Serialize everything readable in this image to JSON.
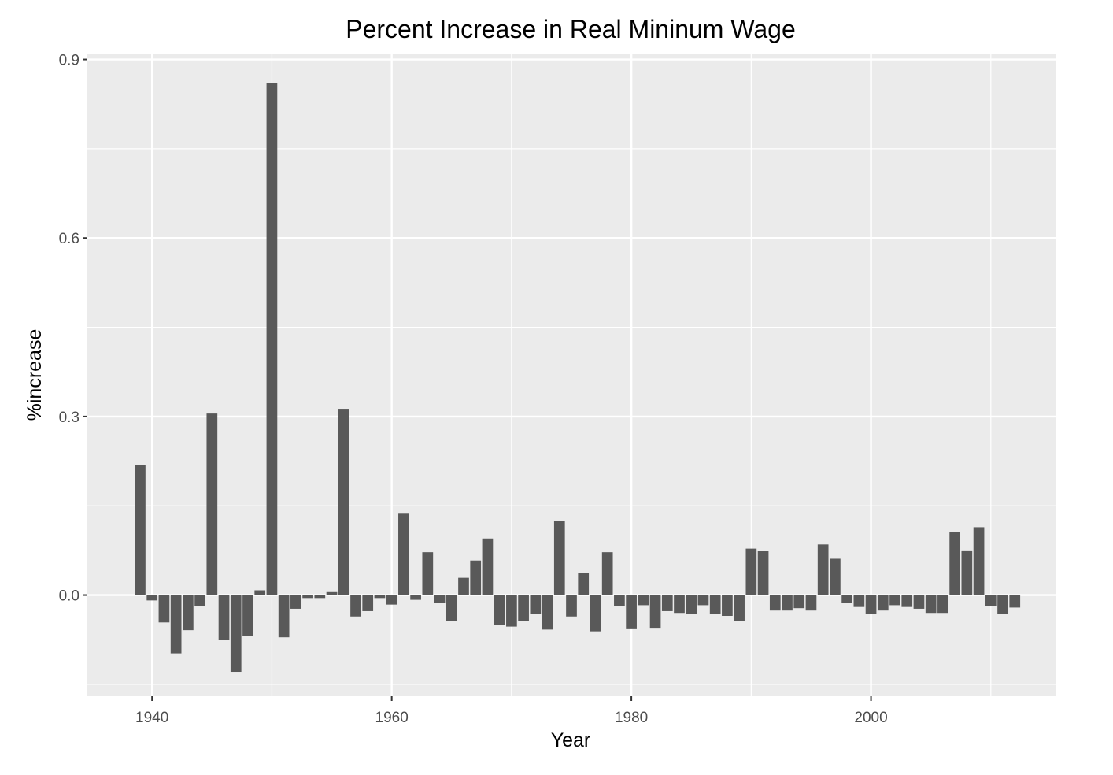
{
  "chart_data": {
    "type": "bar",
    "title": "Percent Increase in Real Mininum Wage",
    "xlabel": "Year",
    "ylabel": "%increase",
    "xlim": [
      1934.6,
      2015.4
    ],
    "ylim": [
      -0.17,
      0.91
    ],
    "x_ticks": [
      {
        "value": 1940,
        "label": "1940"
      },
      {
        "value": 1960,
        "label": "1960"
      },
      {
        "value": 1980,
        "label": "1980"
      },
      {
        "value": 2000,
        "label": "2000"
      }
    ],
    "y_ticks": [
      {
        "value": 0.0,
        "label": "0.0"
      },
      {
        "value": 0.3,
        "label": "0.3"
      },
      {
        "value": 0.6,
        "label": "0.6"
      },
      {
        "value": 0.9,
        "label": "0.9"
      }
    ],
    "grid": true,
    "bar_color": "#595959",
    "panel_color": "#ebebeb",
    "x": [
      1939,
      1940,
      1941,
      1942,
      1943,
      1944,
      1945,
      1946,
      1947,
      1948,
      1949,
      1950,
      1951,
      1952,
      1953,
      1954,
      1955,
      1956,
      1957,
      1958,
      1959,
      1960,
      1961,
      1962,
      1963,
      1964,
      1965,
      1966,
      1967,
      1968,
      1969,
      1970,
      1971,
      1972,
      1973,
      1974,
      1975,
      1976,
      1977,
      1978,
      1979,
      1980,
      1981,
      1982,
      1983,
      1984,
      1985,
      1986,
      1987,
      1988,
      1989,
      1990,
      1991,
      1992,
      1993,
      1994,
      1995,
      1996,
      1997,
      1998,
      1999,
      2000,
      2001,
      2002,
      2003,
      2004,
      2005,
      2006,
      2007,
      2008,
      2009,
      2010,
      2011,
      2012
    ],
    "values": [
      0.218,
      -0.009,
      -0.046,
      -0.098,
      -0.059,
      -0.019,
      0.305,
      -0.076,
      -0.129,
      -0.069,
      0.008,
      0.861,
      -0.071,
      -0.023,
      -0.005,
      -0.005,
      0.005,
      0.313,
      -0.036,
      -0.027,
      -0.005,
      -0.016,
      0.138,
      -0.008,
      0.072,
      -0.013,
      -0.043,
      0.029,
      0.058,
      0.095,
      -0.05,
      -0.053,
      -0.043,
      -0.032,
      -0.058,
      0.124,
      -0.036,
      0.037,
      -0.061,
      0.072,
      -0.019,
      -0.056,
      -0.017,
      -0.055,
      -0.027,
      -0.03,
      -0.032,
      -0.017,
      -0.032,
      -0.035,
      -0.044,
      0.078,
      0.074,
      -0.026,
      -0.026,
      -0.022,
      -0.026,
      0.085,
      0.061,
      -0.013,
      -0.02,
      -0.032,
      -0.026,
      -0.017,
      -0.02,
      -0.023,
      -0.03,
      -0.03,
      0.106,
      0.075,
      0.114,
      -0.019,
      -0.032,
      -0.021
    ]
  }
}
